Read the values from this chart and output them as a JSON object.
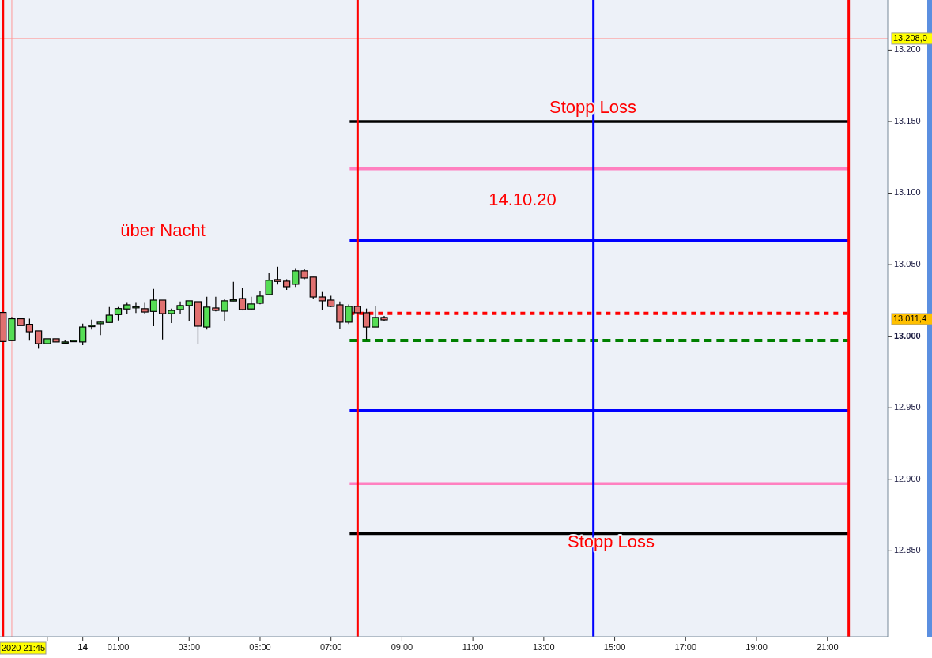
{
  "chart_data": {
    "type": "candlestick",
    "x": [
      "2020-10-13T21:45",
      "2020-10-13T22:00",
      "2020-10-13T22:15",
      "2020-10-13T22:30",
      "2020-10-13T22:45",
      "2020-10-13T23:00",
      "2020-10-13T23:15",
      "2020-10-13T23:30",
      "2020-10-13T23:45",
      "2020-10-14T00:00",
      "2020-10-14T00:15",
      "2020-10-14T00:30",
      "2020-10-14T00:45",
      "2020-10-14T01:00",
      "2020-10-14T01:15",
      "2020-10-14T01:30",
      "2020-10-14T01:45",
      "2020-10-14T02:00",
      "2020-10-14T02:15",
      "2020-10-14T02:30",
      "2020-10-14T02:45",
      "2020-10-14T03:00",
      "2020-10-14T03:15",
      "2020-10-14T03:30",
      "2020-10-14T03:45",
      "2020-10-14T04:00",
      "2020-10-14T04:15",
      "2020-10-14T04:30",
      "2020-10-14T04:45",
      "2020-10-14T05:00",
      "2020-10-14T05:15",
      "2020-10-14T05:30",
      "2020-10-14T05:45",
      "2020-10-14T06:00",
      "2020-10-14T06:15",
      "2020-10-14T06:30",
      "2020-10-14T06:45",
      "2020-10-14T07:00",
      "2020-10-14T07:15",
      "2020-10-14T07:30",
      "2020-10-14T07:45",
      "2020-10-14T08:00",
      "2020-10-14T08:15",
      "2020-10-14T08:30"
    ],
    "ohlc": [
      [
        13016.6,
        13016.6,
        12996.3,
        12996.3
      ],
      [
        12996.9,
        13013.4,
        12996.9,
        13012.2
      ],
      [
        13012.2,
        13012.2,
        13007.4,
        13007.4
      ],
      [
        13008.3,
        13012.2,
        12996.9,
        13003.1
      ],
      [
        13003.7,
        13003.7,
        12991.3,
        12994.8
      ],
      [
        12994.8,
        12998.2,
        12994.8,
        12998.2
      ],
      [
        12998.2,
        12998.2,
        12996,
        12996
      ],
      [
        12996,
        12997.5,
        12995,
        12996
      ],
      [
        12997,
        12997.5,
        12996.5,
        12997
      ],
      [
        12996,
        13008.8,
        12993.7,
        13006.4
      ],
      [
        13007.5,
        13011.6,
        13004.6,
        13007.5
      ],
      [
        13008.7,
        13010.7,
        13000.7,
        13009.8
      ],
      [
        13009.6,
        13020.3,
        13009.6,
        13014.7
      ],
      [
        13015.1,
        13020.4,
        13011,
        13019.3
      ],
      [
        13019,
        13023.8,
        13015.7,
        13021.9
      ],
      [
        13020.6,
        13023.8,
        13016.2,
        13020.6
      ],
      [
        13019.2,
        13023.8,
        13015.7,
        13016.9
      ],
      [
        13017.3,
        13033.1,
        13007,
        13025.2
      ],
      [
        13025.2,
        13025.2,
        12997.8,
        13015.8
      ],
      [
        13015.8,
        13019.2,
        13009.2,
        13018
      ],
      [
        13018.6,
        13024.3,
        13015.8,
        13021.4
      ],
      [
        13021.4,
        13024.7,
        13010.3,
        13024.7
      ],
      [
        13024.1,
        13024.1,
        12994.7,
        13007
      ],
      [
        13006.4,
        13027.6,
        13004.6,
        13020.3
      ],
      [
        13019.7,
        13027.6,
        13017.3,
        13018
      ],
      [
        13017.5,
        13025.8,
        13010.7,
        13024.7
      ],
      [
        13025.4,
        13038,
        13024.5,
        13025.4
      ],
      [
        13026.3,
        13033.7,
        13018,
        13018.6
      ],
      [
        13019,
        13027.6,
        13018.3,
        13022.5
      ],
      [
        13023,
        13031.5,
        13022.3,
        13028
      ],
      [
        13029.1,
        13044.2,
        13029.1,
        13039.1
      ],
      [
        13039.6,
        13048.5,
        13036.1,
        13038.3
      ],
      [
        13038.5,
        13039.8,
        13032.4,
        13034.6
      ],
      [
        13036.3,
        13047.5,
        13034.4,
        13045.7
      ],
      [
        13045.7,
        13047,
        13039.8,
        13040.7
      ],
      [
        13041.3,
        13041.3,
        13026.3,
        13027.4
      ],
      [
        13027.4,
        13030.9,
        13018.3,
        13024.7
      ],
      [
        13025.2,
        13028.2,
        13020.3,
        13020.8
      ],
      [
        13021.9,
        13024.3,
        13005.1,
        13009.8
      ],
      [
        13009.8,
        13022.1,
        13008.5,
        13020.8
      ],
      [
        13020.8,
        13020.8,
        13016.4,
        13016.4
      ],
      [
        13016.4,
        13019.3,
        12997.8,
        13006.4
      ],
      [
        13006.4,
        13020.8,
        13006.4,
        13013.1
      ],
      [
        13013.1,
        13014.2,
        13010.5,
        13011.4
      ]
    ],
    "colors": [
      "#e07070",
      "#55dd55",
      "#e07070",
      "#e07070",
      "#e07070",
      "#55dd55",
      "#e07070",
      "#55dd55",
      "#55dd55",
      "#55dd55",
      "#55dd55",
      "#55dd55",
      "#55dd55",
      "#55dd55",
      "#55dd55",
      "#55dd55",
      "#e07070",
      "#55dd55",
      "#e07070",
      "#55dd55",
      "#55dd55",
      "#55dd55",
      "#e07070",
      "#55dd55",
      "#e07070",
      "#55dd55",
      "#55dd55",
      "#e07070",
      "#55dd55",
      "#55dd55",
      "#55dd55",
      "#e07070",
      "#e07070",
      "#55dd55",
      "#e07070",
      "#e07070",
      "#e07070",
      "#e07070",
      "#e07070",
      "#55dd55",
      "#e07070",
      "#e07070",
      "#55dd55",
      "#e07070"
    ],
    "xlim": [
      "2020-10-13T21:40",
      "2020-10-14T22:42"
    ],
    "xticks": [
      {
        "value": "2020-10-13T23:00",
        "label": null
      },
      {
        "value": "2020-10-14T00:00",
        "label": "14"
      },
      {
        "value": "2020-10-14T01:00",
        "label": "01:00"
      },
      {
        "value": "2020-10-14T03:00",
        "label": "03:00"
      },
      {
        "value": "2020-10-14T05:00",
        "label": "05:00"
      },
      {
        "value": "2020-10-14T07:00",
        "label": "07:00"
      },
      {
        "value": "2020-10-14T09:00",
        "label": "09:00"
      },
      {
        "value": "2020-10-14T11:00",
        "label": "11:00"
      },
      {
        "value": "2020-10-14T13:00",
        "label": "13:00"
      },
      {
        "value": "2020-10-14T15:00",
        "label": "15:00"
      },
      {
        "value": "2020-10-14T17:00",
        "label": "17:00"
      },
      {
        "value": "2020-10-14T19:00",
        "label": "19:00"
      },
      {
        "value": "2020-10-14T21:00",
        "label": "21:00"
      }
    ],
    "ylim": [
      12790,
      13235
    ],
    "yticks": [
      {
        "value": 12850,
        "label": "12.850"
      },
      {
        "value": 12900,
        "label": "12.900"
      },
      {
        "value": 12950,
        "label": "12.950"
      },
      {
        "value": 13000,
        "label": "13.000"
      },
      {
        "value": 13050,
        "label": "13.050"
      },
      {
        "value": 13100,
        "label": "13.100"
      },
      {
        "value": 13150,
        "label": "13.150"
      },
      {
        "value": 13200,
        "label": "13.200"
      }
    ],
    "ref_lines": [
      {
        "axis": "y",
        "value": 13208,
        "label": "13.208,0",
        "color": "#ff9999"
      },
      {
        "axis": "y",
        "value": 13150,
        "color": "#000000"
      },
      {
        "axis": "y",
        "value": 13117,
        "color": "#ff80c0"
      },
      {
        "axis": "y",
        "value": 13067,
        "color": "#0000ff"
      },
      {
        "axis": "y",
        "value": 13016,
        "color": "#ff0000",
        "line_style": "dotted"
      },
      {
        "axis": "y",
        "value": 12997,
        "color": "#008000",
        "line_style": "dashed"
      },
      {
        "axis": "y",
        "value": 12948,
        "color": "#0000ff"
      },
      {
        "axis": "y",
        "value": 12897,
        "color": "#ff80c0"
      },
      {
        "axis": "y",
        "value": 12862,
        "color": "#000000"
      },
      {
        "axis": "x",
        "value": "2020-10-13T21:45",
        "color": "#ff0000"
      },
      {
        "axis": "x",
        "value": "2020-10-13T22:00",
        "color": "#ff9999"
      },
      {
        "axis": "x",
        "value": "2020-10-14T07:45",
        "color": "#ff0000"
      },
      {
        "axis": "x",
        "value": "2020-10-14T14:24",
        "color": "#0000ff"
      },
      {
        "axis": "x",
        "value": "2020-10-14T21:36",
        "color": "#ff0000"
      }
    ],
    "annotations": [
      "Stopp Loss",
      "14.10.20",
      "über Nacht",
      "Stopp Loss",
      "2020 21:45",
      "13.011,4"
    ]
  }
}
